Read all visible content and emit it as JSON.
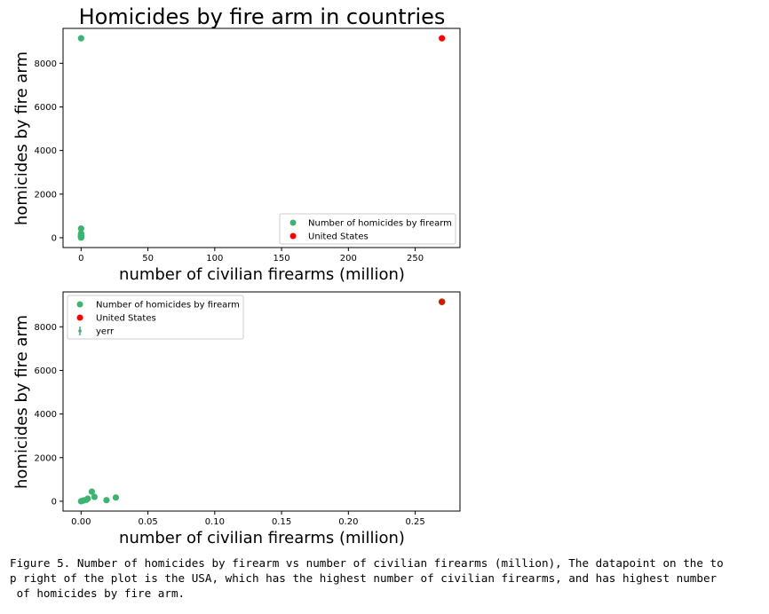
{
  "colors": {
    "series": "#3cb371",
    "highlight": "#ff0000",
    "highlight_edge": "#8b4513",
    "axis": "#000000"
  },
  "chart_data": [
    {
      "type": "scatter",
      "title": "Homicides by fire arm in countries",
      "xlabel": "number of civilian firearms (million)",
      "ylabel": "homicides by fire arm",
      "xlim": [
        -13.5,
        283.5
      ],
      "ylim": [
        -450,
        9600
      ],
      "xticks": [
        0,
        50,
        100,
        150,
        200,
        250
      ],
      "yticks": [
        0,
        2000,
        4000,
        6000,
        8000
      ],
      "xtick_labels": [
        "0",
        "50",
        "100",
        "150",
        "200",
        "250"
      ],
      "ytick_labels": [
        "0",
        "2000",
        "4000",
        "6000",
        "8000"
      ],
      "grid": false,
      "legend_position": "lower right",
      "series": [
        {
          "name": "Number of homicides by firearm",
          "color": "#3cb371",
          "x": [
            0.0,
            0.0,
            0.0,
            0.0,
            0.0,
            0.0,
            0.0,
            0.0,
            0.0
          ],
          "y": [
            9146,
            5,
            20,
            50,
            80,
            120,
            160,
            200,
            420
          ]
        },
        {
          "name": "United States",
          "color": "#ff0000",
          "x": [
            270
          ],
          "y": [
            9146
          ]
        }
      ],
      "legend": [
        {
          "label": "Number of homicides by firearm",
          "kind": "dot",
          "color": "#3cb371"
        },
        {
          "label": "United States",
          "kind": "dot",
          "color": "#ff0000"
        }
      ]
    },
    {
      "type": "scatter",
      "title": "",
      "xlabel": "number of civilian firearms (million)",
      "ylabel": "homicides by fire arm",
      "xlim": [
        -0.0135,
        0.2835
      ],
      "ylim": [
        -450,
        9600
      ],
      "xticks": [
        0.0,
        0.05,
        0.1,
        0.15,
        0.2,
        0.25
      ],
      "yticks": [
        0,
        2000,
        4000,
        6000,
        8000
      ],
      "xtick_labels": [
        "0.00",
        "0.05",
        "0.10",
        "0.15",
        "0.20",
        "0.25"
      ],
      "ytick_labels": [
        "0",
        "2000",
        "4000",
        "6000",
        "8000"
      ],
      "grid": false,
      "legend_position": "upper left",
      "series": [
        {
          "name": "Number of homicides by firearm",
          "color": "#3cb371",
          "x": [
            0.0,
            0.001,
            0.002,
            0.004,
            0.005,
            0.008,
            0.01,
            0.019,
            0.026
          ],
          "y": [
            0,
            20,
            40,
            70,
            120,
            440,
            200,
            50,
            170
          ]
        },
        {
          "name": "United States",
          "color": "#ff0000",
          "x": [
            0.27
          ],
          "y": [
            9146
          ]
        },
        {
          "name": "yerr",
          "color": "#3cb371",
          "x": [
            0.27
          ],
          "y": [
            9146
          ]
        }
      ],
      "legend": [
        {
          "label": "Number of homicides by firearm",
          "kind": "dot",
          "color": "#3cb371"
        },
        {
          "label": "United States",
          "kind": "dot",
          "color": "#ff0000"
        },
        {
          "label": "yerr",
          "kind": "errorbar",
          "color": "#3cb371"
        }
      ]
    }
  ],
  "caption": "Figure 5. Number of homicides by firearm vs number of civilian firearms (million), The datapoint on the to\np right of the plot is the USA, which has the highest number of civilian firearms, and has highest number\n of homicides by fire arm."
}
